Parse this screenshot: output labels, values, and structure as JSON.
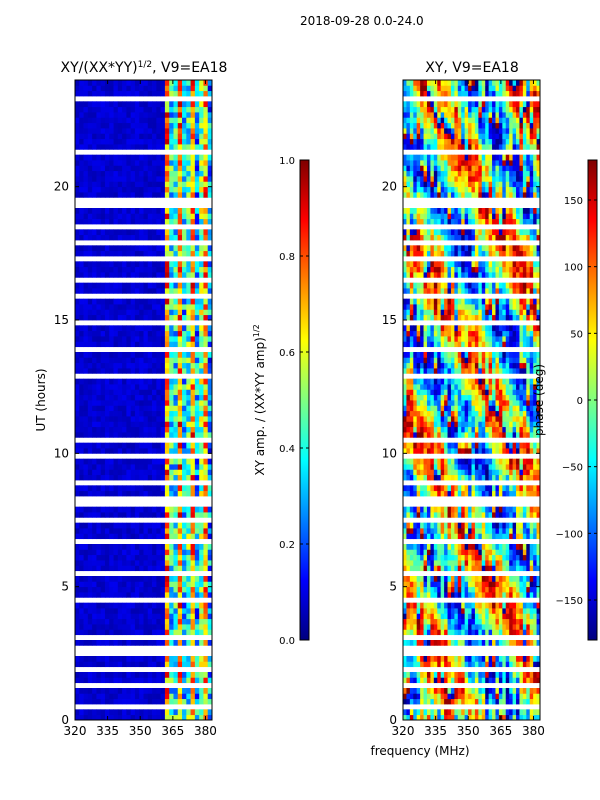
{
  "figure_title": "2018-09-28 0.0-24.0",
  "shared_xlabel": "frequency (MHz)",
  "colors": {
    "jet": [
      "#00007f",
      "#0000ff",
      "#0080ff",
      "#00ffff",
      "#80ff80",
      "#ffff00",
      "#ff8000",
      "#ff0000",
      "#7f0000"
    ],
    "gap": "#ffffff",
    "frame": "#000000"
  },
  "chart_data": [
    {
      "type": "heatmap",
      "title_text": "XY/(XX*YY)",
      "title_exp": "1/2",
      "title_rest": ", V9=EA18",
      "xlabel": "",
      "ylabel": "UT (hours)",
      "xlim": [
        320,
        383
      ],
      "ylim": [
        0,
        24
      ],
      "xticks": [
        "320",
        "335",
        "350",
        "365",
        "380"
      ],
      "xtick_values": [
        320,
        335,
        350,
        365,
        380
      ],
      "yticks": [
        "0",
        "5",
        "10",
        "15",
        "20"
      ],
      "ytick_values": [
        0,
        5,
        10,
        15,
        20
      ],
      "colorbar": {
        "label_text": "XY amp. / (XX*YY amp)",
        "label_exp": "1/2",
        "range": [
          0.0,
          1.0
        ],
        "ticks": [
          "0.0",
          "0.2",
          "0.4",
          "0.6",
          "0.8",
          "1.0"
        ],
        "tick_values": [
          0.0,
          0.2,
          0.4,
          0.6,
          0.8,
          1.0
        ]
      },
      "description_values": {
        "low_band_MHz": [
          320,
          360
        ],
        "low_band_level": 0.05,
        "high_band_MHz": [
          360,
          383
        ],
        "high_band_level": 0.5,
        "data_gaps_hours": [
          [
            0.45,
            0.6
          ],
          [
            1.15,
            1.5
          ],
          [
            1.9,
            2.0
          ],
          [
            2.35,
            2.7
          ],
          [
            3.0,
            3.15
          ],
          [
            4.45,
            4.6
          ],
          [
            5.4,
            5.6
          ],
          [
            6.55,
            6.7
          ],
          [
            7.4,
            7.5
          ],
          [
            8.0,
            8.3
          ],
          [
            8.9,
            9.0
          ],
          [
            9.8,
            10.0
          ],
          [
            10.4,
            10.6
          ],
          [
            11.95,
            12.05
          ],
          [
            12.8,
            12.95
          ],
          [
            13.8,
            13.95
          ],
          [
            14.8,
            15.0
          ],
          [
            15.8,
            15.95
          ],
          [
            16.4,
            16.6
          ],
          [
            17.3,
            17.45
          ],
          [
            17.9,
            18.05
          ],
          [
            18.45,
            18.6
          ],
          [
            19.2,
            19.6
          ],
          [
            21.2,
            21.35
          ],
          [
            22.2,
            22.3
          ],
          [
            23.2,
            23.35
          ]
        ]
      }
    },
    {
      "type": "heatmap",
      "title_text": "XY, V9=EA18",
      "xlabel": "frequency (MHz)",
      "ylabel": "",
      "xlim": [
        320,
        383
      ],
      "ylim": [
        0,
        24
      ],
      "xticks": [
        "320",
        "335",
        "350",
        "365",
        "380"
      ],
      "xtick_values": [
        320,
        335,
        350,
        365,
        380
      ],
      "yticks": [
        "0",
        "5",
        "10",
        "15",
        "20"
      ],
      "ytick_values": [
        0,
        5,
        10,
        15,
        20
      ],
      "colorbar": {
        "label_text": "phase (deg)",
        "range": [
          -180,
          180
        ],
        "ticks": [
          "−150",
          "−100",
          "−50",
          "0",
          "50",
          "100",
          "150"
        ],
        "tick_values": [
          -150,
          -100,
          -50,
          0,
          50,
          100,
          150
        ]
      },
      "description_values": {
        "pattern": "noisy phase spanning full range",
        "data_gaps_hours": [
          [
            0.45,
            0.6
          ],
          [
            1.15,
            1.5
          ],
          [
            1.9,
            2.0
          ],
          [
            2.35,
            2.7
          ],
          [
            3.0,
            3.15
          ],
          [
            4.45,
            4.6
          ],
          [
            5.4,
            5.6
          ],
          [
            6.55,
            6.7
          ],
          [
            7.4,
            7.5
          ],
          [
            8.0,
            8.3
          ],
          [
            8.9,
            9.0
          ],
          [
            9.8,
            10.0
          ],
          [
            10.4,
            10.6
          ],
          [
            11.95,
            12.05
          ],
          [
            12.8,
            12.95
          ],
          [
            13.8,
            13.95
          ],
          [
            14.8,
            15.0
          ],
          [
            15.8,
            15.95
          ],
          [
            16.4,
            16.6
          ],
          [
            17.3,
            17.45
          ],
          [
            17.9,
            18.05
          ],
          [
            18.45,
            18.6
          ],
          [
            19.2,
            19.6
          ],
          [
            21.2,
            21.35
          ],
          [
            22.2,
            22.3
          ],
          [
            23.2,
            23.35
          ]
        ]
      }
    }
  ]
}
